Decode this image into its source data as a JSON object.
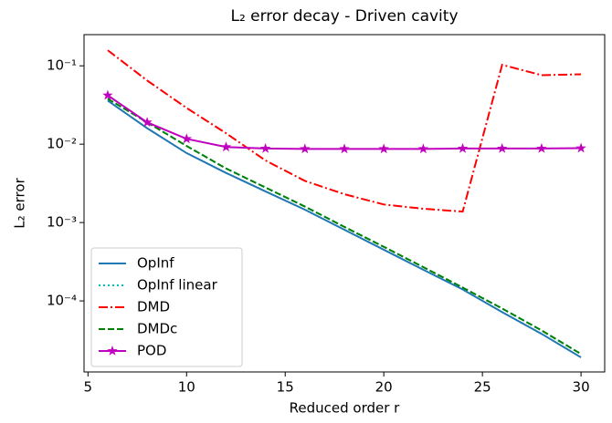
{
  "chart_data": {
    "type": "line",
    "title": "L₂ error decay - Driven cavity",
    "x_label": "Reduced order r",
    "y_label": "L₂ error",
    "x": [
      6,
      8,
      10,
      12,
      14,
      16,
      18,
      20,
      22,
      24,
      26,
      28,
      30
    ],
    "xlim": [
      4.8,
      31.2
    ],
    "xticks": [
      5,
      10,
      15,
      20,
      25,
      30
    ],
    "ylim": [
      1.24e-05,
      0.25
    ],
    "yscale": "log",
    "yticks": [
      {
        "value": 0.1,
        "label": "10⁻¹"
      },
      {
        "value": 0.01,
        "label": "10⁻²"
      },
      {
        "value": 0.001,
        "label": "10⁻³"
      },
      {
        "value": 0.0001,
        "label": "10⁻⁴"
      }
    ],
    "legend": "lower left",
    "series": [
      {
        "name": "OpInf",
        "color": "#1f77b4",
        "style": "solid",
        "values": [
          0.036,
          0.016,
          0.0077,
          0.0043,
          0.0025,
          0.00146,
          0.00081,
          0.00045,
          0.00025,
          0.00014,
          7.2e-05,
          3.8e-05,
          1.9e-05
        ]
      },
      {
        "name": "OpInf linear",
        "color": "#00bfbf",
        "style": "dotted",
        "values": [
          0.038,
          0.019,
          0.0095,
          0.0049,
          0.0028,
          0.0016,
          0.00088,
          0.00049,
          0.00027,
          0.000148,
          8e-05,
          4.2e-05,
          2.1e-05
        ]
      },
      {
        "name": "DMD",
        "color": "#ff0000",
        "style": "dashdot",
        "values": [
          0.158,
          0.065,
          0.029,
          0.0138,
          0.0062,
          0.0034,
          0.0023,
          0.0017,
          0.0015,
          0.00138,
          0.103,
          0.076,
          0.078
        ]
      },
      {
        "name": "DMDc",
        "color": "#008000",
        "style": "dashed",
        "values": [
          0.038,
          0.019,
          0.0095,
          0.0049,
          0.0028,
          0.0016,
          0.00088,
          0.00049,
          0.00027,
          0.000148,
          8e-05,
          4.2e-05,
          2.1e-05
        ]
      },
      {
        "name": "POD",
        "color": "#bf00bf",
        "style": "solid",
        "marker": "star",
        "values": [
          0.042,
          0.019,
          0.0117,
          0.0092,
          0.0088,
          0.0087,
          0.0087,
          0.0087,
          0.0087,
          0.0088,
          0.0088,
          0.0088,
          0.0089
        ]
      }
    ]
  }
}
